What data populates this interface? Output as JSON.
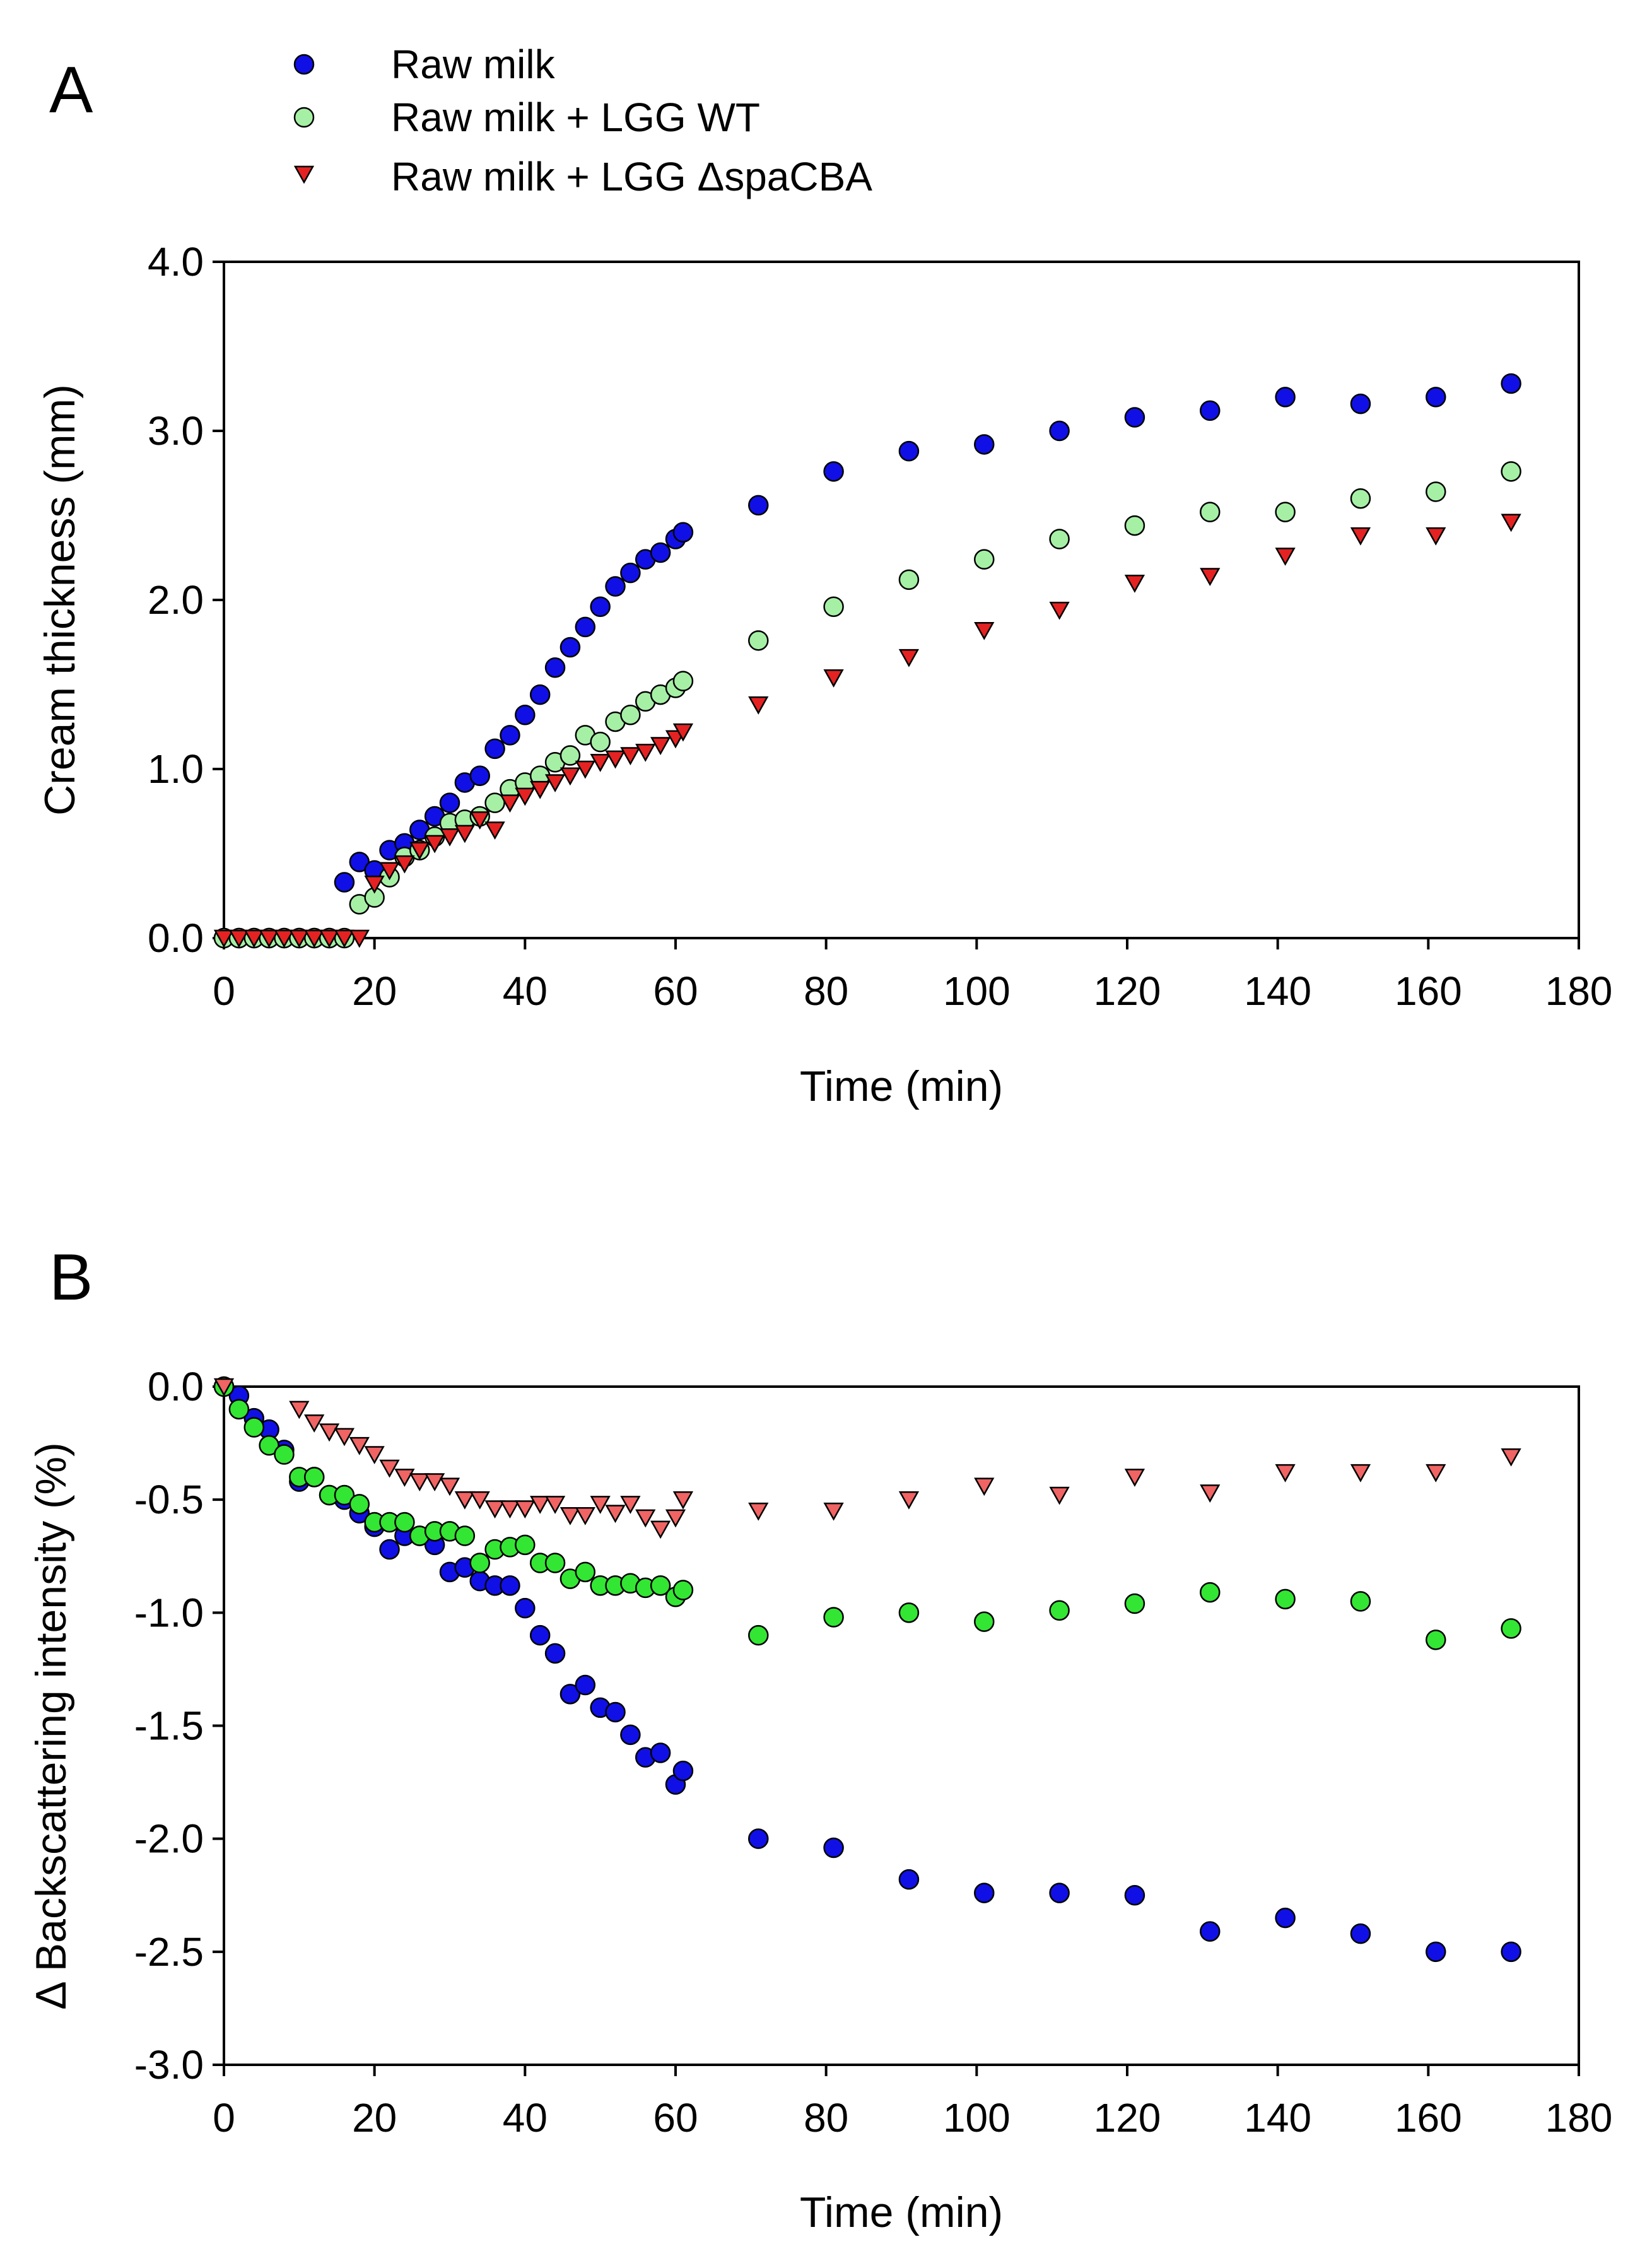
{
  "legend": [
    {
      "label": "Raw milk",
      "marker": "circle",
      "color": "#1010E6"
    },
    {
      "label": "Raw milk + LGG WT",
      "marker": "circle",
      "color": "#A6F0A6"
    },
    {
      "label": "Raw milk + LGG ΔspaCBA",
      "marker": "triangle-down",
      "color": "#E52222"
    }
  ],
  "chart_data": [
    {
      "type": "scatter",
      "panel": "A",
      "title": "",
      "xlabel": "Time (min)",
      "ylabel": "Cream thickness (mm)",
      "xlim": [
        0,
        180
      ],
      "ylim": [
        0,
        4
      ],
      "xticks": [
        0,
        20,
        40,
        60,
        80,
        100,
        120,
        140,
        160,
        180
      ],
      "yticks": [
        0,
        1,
        2,
        3,
        4
      ],
      "xtick_labels": [
        "0",
        "20",
        "40",
        "60",
        "80",
        "100",
        "120",
        "140",
        "160",
        "180"
      ],
      "ytick_labels": [
        "0.0",
        "1.0",
        "2.0",
        "3.0",
        "4.0"
      ],
      "series": [
        {
          "name": "Raw milk",
          "color": "#1010E6",
          "marker": "circle",
          "x": [
            0,
            2,
            4,
            6,
            8,
            10,
            12,
            14,
            16,
            18,
            20,
            22,
            24,
            26,
            28,
            30,
            32,
            34,
            36,
            38,
            40,
            42,
            44,
            46,
            48,
            50,
            52,
            54,
            56,
            58,
            60,
            61,
            71,
            81,
            91,
            101,
            111,
            121,
            131,
            141,
            151,
            161,
            171
          ],
          "y": [
            0,
            0,
            0,
            0,
            0,
            0,
            0,
            0,
            0.33,
            0.45,
            0.4,
            0.52,
            0.56,
            0.64,
            0.72,
            0.8,
            0.92,
            0.96,
            1.12,
            1.2,
            1.32,
            1.44,
            1.6,
            1.72,
            1.84,
            1.96,
            2.08,
            2.16,
            2.24,
            2.28,
            2.36,
            2.4,
            2.56,
            2.76,
            2.88,
            2.92,
            3.0,
            3.08,
            3.12,
            3.2,
            3.16,
            3.2,
            3.28
          ]
        },
        {
          "name": "Raw milk + LGG WT",
          "color": "#A6F0A6",
          "marker": "circle",
          "x": [
            0,
            2,
            4,
            6,
            8,
            10,
            12,
            14,
            16,
            18,
            20,
            22,
            24,
            26,
            28,
            30,
            32,
            34,
            36,
            38,
            40,
            42,
            44,
            46,
            48,
            50,
            52,
            54,
            56,
            58,
            60,
            61,
            71,
            81,
            91,
            101,
            111,
            121,
            131,
            141,
            151,
            161,
            171
          ],
          "y": [
            0,
            0,
            0,
            0,
            0,
            0,
            0,
            0,
            0,
            0.2,
            0.24,
            0.36,
            0.48,
            0.52,
            0.6,
            0.68,
            0.7,
            0.72,
            0.8,
            0.88,
            0.92,
            0.96,
            1.04,
            1.08,
            1.2,
            1.16,
            1.28,
            1.32,
            1.4,
            1.44,
            1.48,
            1.52,
            1.76,
            1.96,
            2.12,
            2.24,
            2.36,
            2.44,
            2.52,
            2.52,
            2.6,
            2.64,
            2.76
          ]
        },
        {
          "name": "Raw milk + LGG ΔspaCBA",
          "color": "#E52222",
          "marker": "triangle-down",
          "x": [
            0,
            2,
            4,
            6,
            8,
            10,
            12,
            14,
            16,
            18,
            20,
            22,
            24,
            26,
            28,
            30,
            32,
            34,
            36,
            38,
            40,
            42,
            44,
            46,
            48,
            50,
            52,
            54,
            56,
            58,
            60,
            61,
            71,
            81,
            91,
            101,
            111,
            121,
            131,
            141,
            151,
            161,
            171
          ],
          "y": [
            0,
            0,
            0,
            0,
            0,
            0,
            0,
            0,
            0,
            0,
            0.32,
            0.4,
            0.44,
            0.52,
            0.56,
            0.6,
            0.62,
            0.7,
            0.64,
            0.8,
            0.84,
            0.88,
            0.92,
            0.96,
            1.0,
            1.04,
            1.06,
            1.08,
            1.1,
            1.14,
            1.18,
            1.22,
            1.38,
            1.54,
            1.66,
            1.82,
            1.94,
            2.1,
            2.14,
            2.26,
            2.38,
            2.38,
            2.46
          ]
        }
      ]
    },
    {
      "type": "scatter",
      "panel": "B",
      "title": "",
      "xlabel": "Time (min)",
      "ylabel": "Δ Backscattering intensity (%)",
      "xlim": [
        0,
        180
      ],
      "ylim": [
        -3,
        0
      ],
      "xticks": [
        0,
        20,
        40,
        60,
        80,
        100,
        120,
        140,
        160,
        180
      ],
      "yticks": [
        0,
        -0.5,
        -1,
        -1.5,
        -2,
        -2.5,
        -3
      ],
      "xtick_labels": [
        "0",
        "20",
        "40",
        "60",
        "80",
        "100",
        "120",
        "140",
        "160",
        "180"
      ],
      "ytick_labels": [
        "0.0",
        "-0.5",
        "-1.0",
        "-1.5",
        "-2.0",
        "-2.5",
        "-3.0"
      ],
      "series": [
        {
          "name": "Raw milk",
          "color": "#1010E6",
          "marker": "circle",
          "x": [
            0,
            2,
            4,
            6,
            8,
            10,
            12,
            14,
            16,
            18,
            20,
            22,
            24,
            26,
            28,
            30,
            32,
            34,
            36,
            38,
            40,
            42,
            44,
            46,
            48,
            50,
            52,
            54,
            56,
            58,
            60,
            61,
            71,
            81,
            91,
            101,
            111,
            121,
            131,
            141,
            151,
            161,
            171
          ],
          "y": [
            0,
            -0.04,
            -0.14,
            -0.19,
            -0.28,
            -0.42,
            -0.4,
            -0.48,
            -0.5,
            -0.56,
            -0.62,
            -0.72,
            -0.66,
            -0.66,
            -0.7,
            -0.82,
            -0.8,
            -0.86,
            -0.88,
            -0.88,
            -0.98,
            -1.1,
            -1.18,
            -1.36,
            -1.32,
            -1.42,
            -1.44,
            -1.54,
            -1.64,
            -1.62,
            -1.76,
            -1.7,
            -2.0,
            -2.04,
            -2.18,
            -2.24,
            -2.24,
            -2.25,
            -2.41,
            -2.35,
            -2.42,
            -2.5,
            -2.5
          ]
        },
        {
          "name": "Raw milk + LGG WT",
          "color": "#33E633",
          "marker": "circle",
          "x": [
            0,
            2,
            4,
            6,
            8,
            10,
            12,
            14,
            16,
            18,
            20,
            22,
            24,
            26,
            28,
            30,
            32,
            34,
            36,
            38,
            40,
            42,
            44,
            46,
            48,
            50,
            52,
            54,
            56,
            58,
            60,
            61,
            71,
            81,
            91,
            101,
            111,
            121,
            131,
            141,
            151,
            161,
            171
          ],
          "y": [
            0,
            -0.1,
            -0.18,
            -0.26,
            -0.3,
            -0.4,
            -0.4,
            -0.48,
            -0.48,
            -0.52,
            -0.6,
            -0.6,
            -0.6,
            -0.66,
            -0.64,
            -0.64,
            -0.66,
            -0.78,
            -0.72,
            -0.71,
            -0.7,
            -0.78,
            -0.78,
            -0.85,
            -0.82,
            -0.88,
            -0.88,
            -0.87,
            -0.89,
            -0.88,
            -0.93,
            -0.9,
            -1.1,
            -1.02,
            -1.0,
            -1.04,
            -0.99,
            -0.96,
            -0.91,
            -0.94,
            -0.95,
            -1.12,
            -1.07
          ]
        },
        {
          "name": "Raw milk + LGG ΔspaCBA",
          "color": "#F06464",
          "marker": "triangle-down",
          "x": [
            0,
            10,
            12,
            14,
            16,
            18,
            20,
            22,
            24,
            26,
            28,
            30,
            32,
            34,
            36,
            38,
            40,
            42,
            44,
            46,
            48,
            50,
            52,
            54,
            56,
            58,
            60,
            61,
            71,
            81,
            91,
            101,
            111,
            121,
            131,
            141,
            151,
            161,
            171
          ],
          "y": [
            0,
            -0.1,
            -0.16,
            -0.2,
            -0.22,
            -0.26,
            -0.3,
            -0.36,
            -0.4,
            -0.42,
            -0.42,
            -0.44,
            -0.5,
            -0.5,
            -0.54,
            -0.54,
            -0.54,
            -0.52,
            -0.52,
            -0.57,
            -0.57,
            -0.52,
            -0.56,
            -0.52,
            -0.58,
            -0.63,
            -0.58,
            -0.5,
            -0.55,
            -0.55,
            -0.5,
            -0.44,
            -0.48,
            -0.4,
            -0.47,
            -0.38,
            -0.38,
            -0.38,
            -0.31
          ]
        }
      ]
    }
  ]
}
